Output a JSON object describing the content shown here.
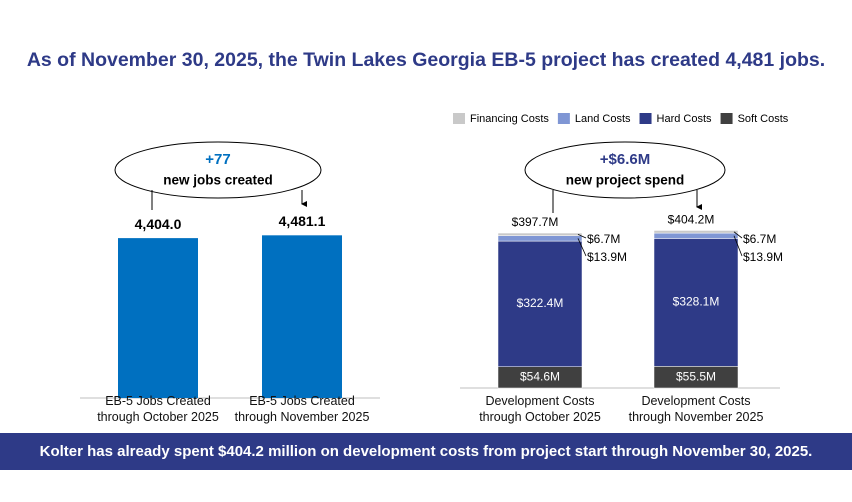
{
  "title": "As of November 30, 2025, the Twin Lakes Georgia EB-5 project has created 4,481 jobs.",
  "chart_data": [
    {
      "type": "bar",
      "categories": [
        "EB-5 Jobs Created through October 2025",
        "EB-5 Jobs Created through November 2025"
      ],
      "values": [
        4404.0,
        4481.1
      ],
      "value_labels": [
        "4,404.0",
        "4,481.1"
      ],
      "color": "#0070c0",
      "annotation": {
        "change": "+77",
        "text": "new jobs created"
      }
    },
    {
      "type": "stacked-bar",
      "categories": [
        "Development Costs through October 2025",
        "Development Costs through November 2025"
      ],
      "series": [
        {
          "name": "Financing Costs",
          "color": "#c9c9c9",
          "values": [
            6.7,
            6.7
          ],
          "value_labels": [
            "$6.7M",
            "$6.7M"
          ]
        },
        {
          "name": "Land Costs",
          "color": "#7f96d4",
          "values": [
            13.9,
            13.9
          ],
          "value_labels": [
            "$13.9M",
            "$13.9M"
          ]
        },
        {
          "name": "Hard Costs",
          "color": "#2e3a87",
          "values": [
            322.4,
            328.1
          ],
          "value_labels": [
            "$322.4M",
            "$328.1M"
          ]
        },
        {
          "name": "Soft Costs",
          "color": "#404040",
          "values": [
            54.6,
            55.5
          ],
          "value_labels": [
            "$54.6M",
            "$55.5M"
          ]
        }
      ],
      "totals": {
        "values": [
          397.7,
          404.2
        ],
        "value_labels": [
          "$397.7M",
          "$404.2M"
        ]
      },
      "legend": "top",
      "annotation": {
        "change": "+$6.6M",
        "text": "new project spend"
      }
    }
  ],
  "banner": "Kolter has already spent $404.2 million on development costs from project start through November 30, 2025."
}
